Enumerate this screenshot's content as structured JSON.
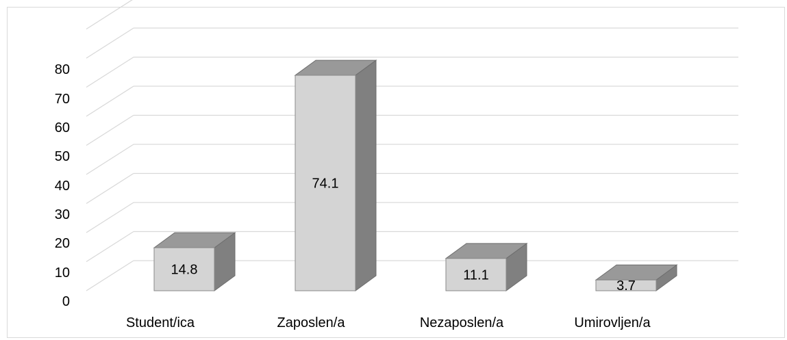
{
  "chart_data": {
    "type": "bar",
    "style": "3d-column",
    "categories": [
      "Student/ica",
      "Zaposlen/a",
      "Nezaposlen/a",
      "Umirovljen/a"
    ],
    "values": [
      14.8,
      74.1,
      11.1,
      3.7
    ],
    "data_labels": [
      "14.8",
      "74.1",
      "11.1",
      "3.7"
    ],
    "y_ticks": [
      "0",
      "10",
      "20",
      "30",
      "40",
      "50",
      "60",
      "70",
      "80"
    ],
    "ylim": [
      0,
      80
    ],
    "grid": true,
    "legend": "none",
    "colors": {
      "bar_front": "#d4d4d4",
      "bar_top": "#999999",
      "bar_side": "#808080",
      "gridline": "#d9d9d9"
    }
  }
}
